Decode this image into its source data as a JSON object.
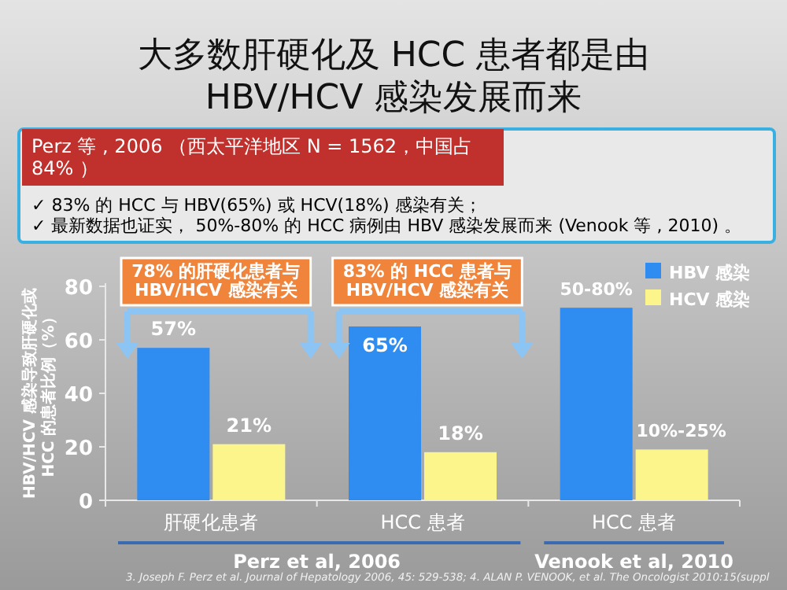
{
  "chart_data": {
    "type": "bar",
    "title": "大多数肝硬化及 HCC 患者都是由 HBV/HCV 感染发展而来",
    "ylabel": "HBV/HCV 感染导致肝硬化或 HCC 的患者比例（%）",
    "categories": [
      "肝硬化患者",
      "HCC 患者",
      "HCC 患者"
    ],
    "series": [
      {
        "name": "HBV 感染",
        "color": "#2f8cf0",
        "values": [
          57,
          65,
          72
        ],
        "value_labels": [
          "57%",
          "65%",
          null
        ]
      },
      {
        "name": "HCV 感染",
        "color": "#fbf58c",
        "values": [
          21,
          18,
          19
        ],
        "value_labels": [
          "21%",
          "18%",
          null
        ]
      }
    ],
    "ylim": [
      0,
      80
    ],
    "yticks": [
      0,
      20,
      40,
      60,
      80
    ],
    "legend": "top right",
    "annotations": [
      "Perz 等 , 2006 （西太平洋地区 N = 1562，中国占 84% ）",
      "✓ 83% 的 HCC 与 HBV(65%) 或 HCV(18%) 感染有关；",
      "✓ 最新数据也证实， 50%-80% 的 HCC 病例由 HBV 感染发展而来 (Venook 等 , 2010) 。",
      "78% 的肝硬化患者与 HBV/HCV 感染有关",
      "83% 的 HCC 患者与 HBV/HCV 感染有关",
      "Perz et al, 2006",
      "Venook et al, 2010",
      "3. Joseph F. Perz et al. Journal of Hepatology 2006, 45: 529-538; 4. ALAN P. VENOOK, et al. The Oncologist 2010:15(suppl",
      "50-80%",
      "10%-25%"
    ]
  }
}
